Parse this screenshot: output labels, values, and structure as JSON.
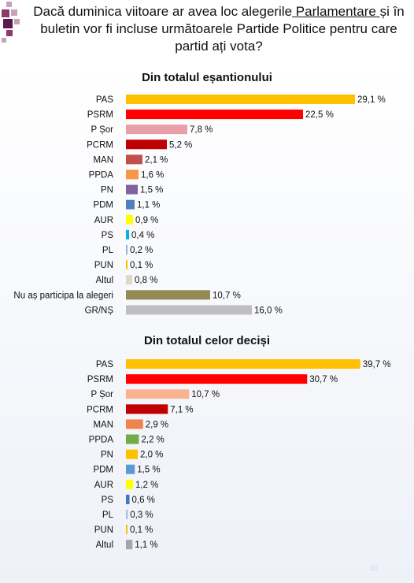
{
  "question": {
    "part1": "Dacă duminica viitoare ar avea loc alegerile",
    "underlined": " Parlamentare ",
    "part2": "și în buletin vor fi incluse următoarele Partide Politice pentru care partid ați vota?"
  },
  "slide_number": "10",
  "colors": {
    "logo1": "#c9a0b8",
    "logo2": "#8b3a6b",
    "logo3": "#5a1a4a"
  },
  "chart_data": [
    {
      "type": "bar",
      "orientation": "horizontal",
      "title": "Din totalul eșantionului",
      "xlim": [
        0,
        30
      ],
      "categories": [
        "PAS",
        "PSRM",
        "P Șor",
        "PCRM",
        "MAN",
        "PPDA",
        "PN",
        "PDM",
        "AUR",
        "PS",
        "PL",
        "PUN",
        "Altul",
        "Nu aș participa la alegeri",
        "GR/NȘ"
      ],
      "values": [
        29.1,
        22.5,
        7.8,
        5.2,
        2.1,
        1.6,
        1.5,
        1.1,
        0.9,
        0.4,
        0.2,
        0.1,
        0.8,
        10.7,
        16.0
      ],
      "value_labels": [
        "29,1 %",
        "22,5 %",
        "7,8 %",
        "5,2 %",
        "2,1 %",
        "1,6 %",
        "1,5 %",
        "1,1 %",
        "0,9 %",
        "0,4 %",
        "0,2 %",
        "0,1 %",
        "0,8 %",
        "10,7 %",
        "16,0 %"
      ],
      "colors": [
        "#ffc000",
        "#ff0000",
        "#e8a0a8",
        "#c00000",
        "#c0504d",
        "#f79646",
        "#8064a2",
        "#4f81bd",
        "#ffff00",
        "#00b0f0",
        "#8db4e2",
        "#ffc000",
        "#ddd9c4",
        "#948a54",
        "#bfbfbf"
      ]
    },
    {
      "type": "bar",
      "orientation": "horizontal",
      "title": "Din totalul celor deciși",
      "xlim": [
        0,
        40
      ],
      "categories": [
        "PAS",
        "PSRM",
        "P Șor",
        "PCRM",
        "MAN",
        "PPDA",
        "PN",
        "PDM",
        "AUR",
        "PS",
        "PL",
        "PUN",
        "Altul"
      ],
      "values": [
        39.7,
        30.7,
        10.7,
        7.1,
        2.9,
        2.2,
        2.0,
        1.5,
        1.2,
        0.6,
        0.3,
        0.1,
        1.1
      ],
      "value_labels": [
        "39,7 %",
        "30,7 %",
        "10,7 %",
        "7,1 %",
        "2,9 %",
        "2,2 %",
        "2,0 %",
        "1,5 %",
        "1,2 %",
        "0,6 %",
        "0,3 %",
        "0,1 %",
        "1,1 %"
      ],
      "colors": [
        "#ffc000",
        "#ff0000",
        "#fab391",
        "#c00000",
        "#f0824b",
        "#70ad47",
        "#ffc000",
        "#5b9bd5",
        "#ffff00",
        "#4472c4",
        "#9dc3e6",
        "#ffc000",
        "#a5a5a5"
      ]
    }
  ]
}
